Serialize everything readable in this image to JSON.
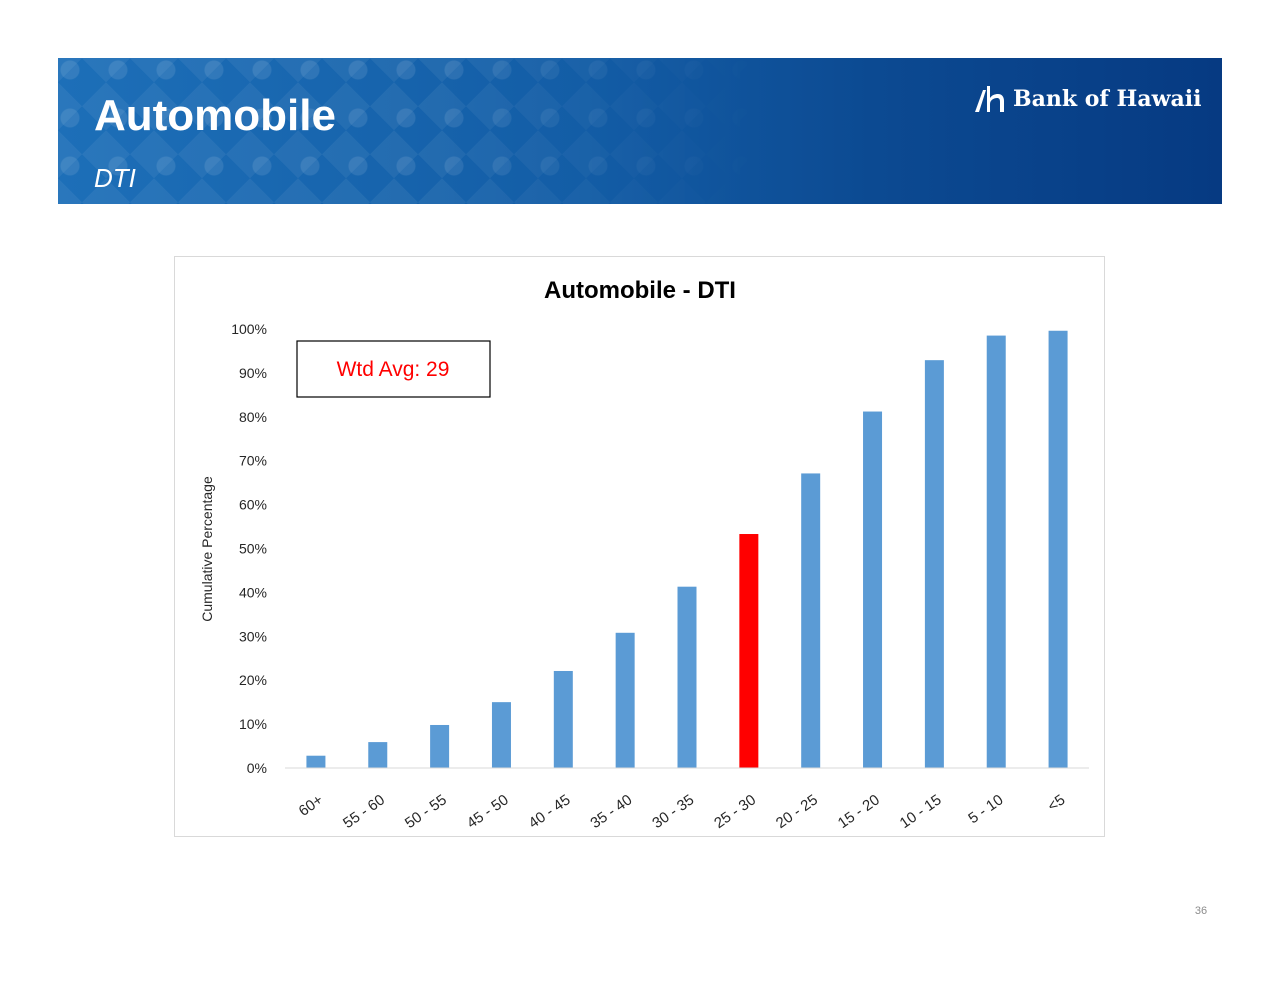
{
  "header": {
    "title": "Automobile",
    "subtitle": "DTI",
    "logo_text": "Bank of Hawaii"
  },
  "colors": {
    "banner": "#135da6",
    "bar": "#5b9bd5",
    "highlight_bar": "#ff0000",
    "annotation_text": "#ff0000"
  },
  "chart_data": {
    "type": "bar",
    "title": "Automobile - DTI",
    "xlabel": "",
    "ylabel": "Cumulative Percentage",
    "ylim": [
      0,
      100
    ],
    "yticks": [
      0,
      10,
      20,
      30,
      40,
      50,
      60,
      70,
      80,
      90,
      100
    ],
    "ytick_format": "percent",
    "grid": false,
    "legend": "none",
    "categories": [
      "60+",
      "55 - 60",
      "50 - 55",
      "45 - 50",
      "40 - 45",
      "35 - 40",
      "30 - 35",
      "25 - 30",
      "20 - 25",
      "15 - 20",
      "10 - 15",
      "5 - 10",
      "<5"
    ],
    "values": [
      2.8,
      5.9,
      9.8,
      15.0,
      22.1,
      30.8,
      41.3,
      53.3,
      67.1,
      81.2,
      92.9,
      98.5,
      99.6
    ],
    "highlight_category": "25 - 30",
    "annotation": "Wtd Avg: 29"
  },
  "footer": {
    "page_number": "36"
  }
}
